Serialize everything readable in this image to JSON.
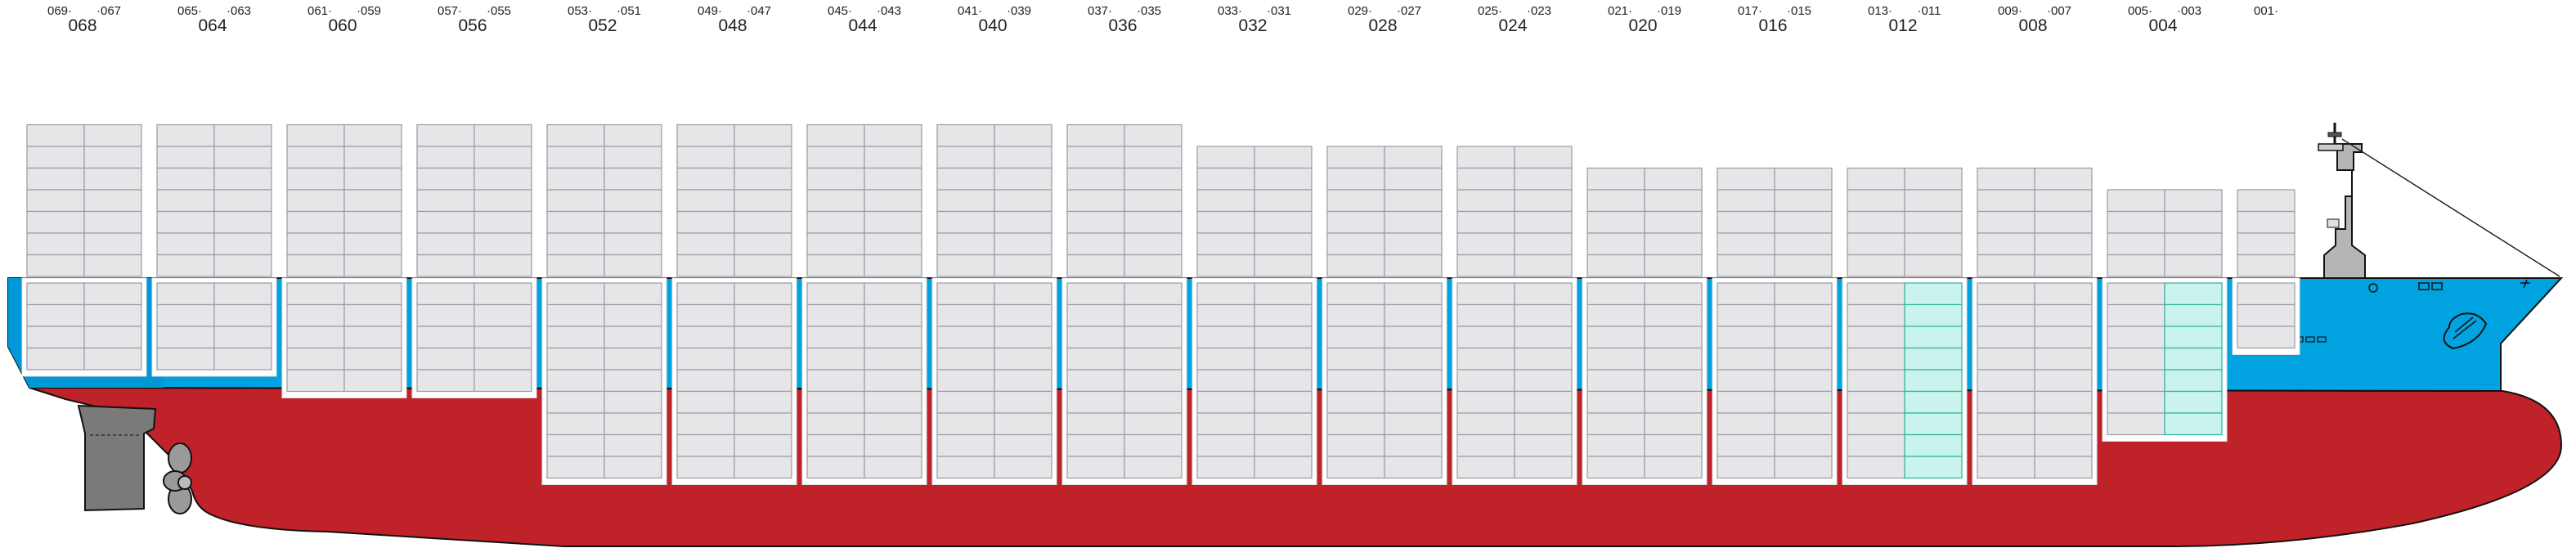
{
  "colors": {
    "hull_red": "#c0222a",
    "hull_blue": "#009ee0",
    "deck_blue": "#00a3e0",
    "container_fill": "#e6e6e9",
    "container_stroke": "#9a9aa2",
    "reefer_fill": "#c9f3ec",
    "reefer_stroke": "#2bb39a",
    "machinery_gray": "#7a7a7a",
    "outline": "#111111"
  },
  "bays": [
    {
      "bay": "068",
      "left": "069",
      "right": "067",
      "above_tiers": 7,
      "below_tiers": 4,
      "reefer_below": false
    },
    {
      "bay": "064",
      "left": "065",
      "right": "063",
      "above_tiers": 7,
      "below_tiers": 4,
      "reefer_below": false
    },
    {
      "bay": "060",
      "left": "061",
      "right": "059",
      "above_tiers": 7,
      "below_tiers": 5,
      "reefer_below": false
    },
    {
      "bay": "056",
      "left": "057",
      "right": "055",
      "above_tiers": 7,
      "below_tiers": 5,
      "reefer_below": false
    },
    {
      "bay": "052",
      "left": "053",
      "right": "051",
      "above_tiers": 7,
      "below_tiers": 9,
      "reefer_below": false
    },
    {
      "bay": "048",
      "left": "049",
      "right": "047",
      "above_tiers": 7,
      "below_tiers": 9,
      "reefer_below": false
    },
    {
      "bay": "044",
      "left": "045",
      "right": "043",
      "above_tiers": 7,
      "below_tiers": 9,
      "reefer_below": false
    },
    {
      "bay": "040",
      "left": "041",
      "right": "039",
      "above_tiers": 7,
      "below_tiers": 9,
      "reefer_below": false
    },
    {
      "bay": "036",
      "left": "037",
      "right": "035",
      "above_tiers": 7,
      "below_tiers": 9,
      "reefer_below": false
    },
    {
      "bay": "032",
      "left": "033",
      "right": "031",
      "above_tiers": 6,
      "below_tiers": 9,
      "reefer_below": false
    },
    {
      "bay": "028",
      "left": "029",
      "right": "027",
      "above_tiers": 6,
      "below_tiers": 9,
      "reefer_below": false
    },
    {
      "bay": "024",
      "left": "025",
      "right": "023",
      "above_tiers": 6,
      "below_tiers": 9,
      "reefer_below": false
    },
    {
      "bay": "020",
      "left": "021",
      "right": "019",
      "above_tiers": 5,
      "below_tiers": 9,
      "reefer_below": false
    },
    {
      "bay": "016",
      "left": "017",
      "right": "015",
      "above_tiers": 5,
      "below_tiers": 9,
      "reefer_below": false
    },
    {
      "bay": "012",
      "left": "013",
      "right": "011",
      "above_tiers": 5,
      "below_tiers": 9,
      "reefer_below": true
    },
    {
      "bay": "008",
      "left": "009",
      "right": "007",
      "above_tiers": 5,
      "below_tiers": 9,
      "reefer_below": false
    },
    {
      "bay": "004",
      "left": "005",
      "right": "003",
      "above_tiers": 4,
      "below_tiers": 7,
      "reefer_below": true
    },
    {
      "bay": "",
      "left": "001",
      "right": "",
      "above_tiers": 4,
      "below_tiers": 3,
      "reefer_below": false
    }
  ]
}
